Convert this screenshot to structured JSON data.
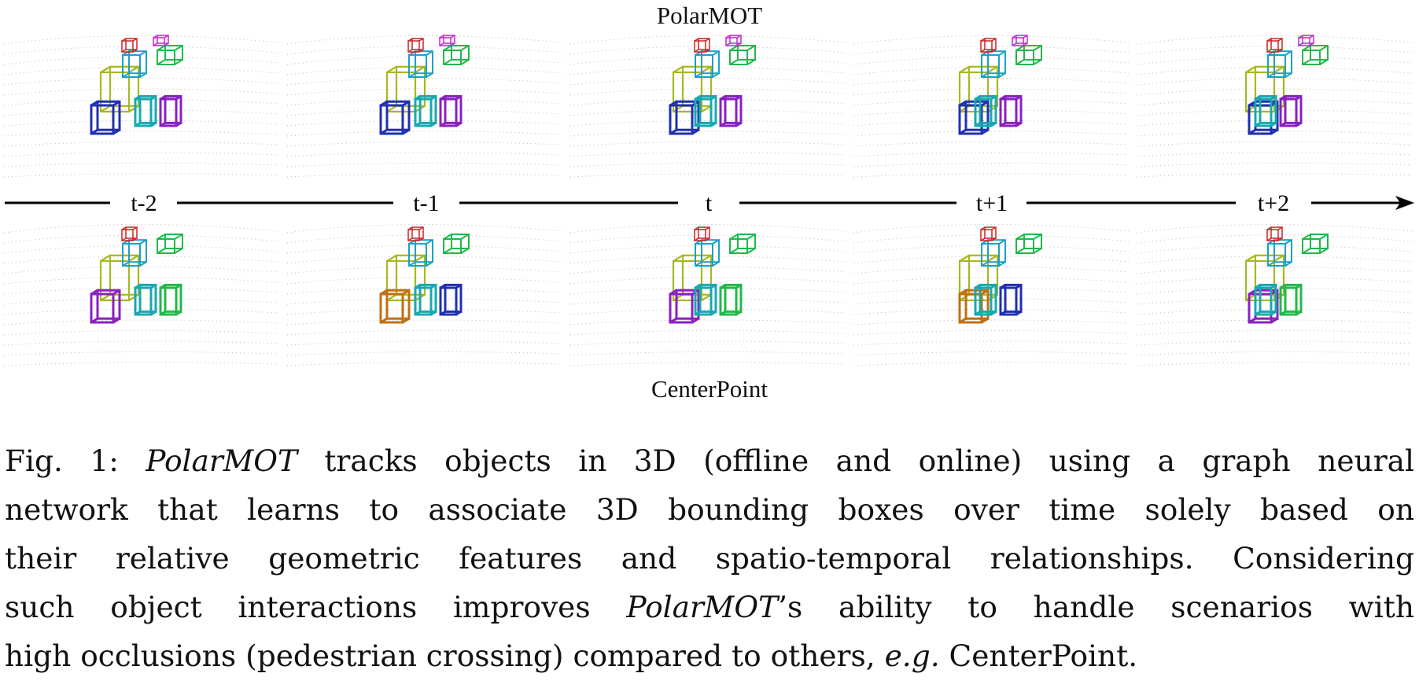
{
  "figure": {
    "top_title": "PolarMOT",
    "bottom_title": "CenterPoint",
    "timeline_labels": [
      "t-2",
      "t-1",
      "t",
      "t+1",
      "t+2"
    ]
  },
  "caption": {
    "line1_prefix": "Fig. 1: ",
    "line1_italic": "PolarMOT",
    "line1_rest": " tracks objects in 3D (offline and online) using a graph neural",
    "line2": "network that learns to associate 3D bounding boxes over time solely based on",
    "line3": "their relative geometric features and spatio-temporal relationships. Considering",
    "line4_prefix": "such object interactions improves ",
    "line4_italic": "PolarMOT",
    "line4_rest": "’s ability to handle scenarios with",
    "line5_prefix": "high occlusions (pedestrian crossing) compared to others, ",
    "line5_italic": "e.g.",
    "line5_rest": " CenterPoint."
  },
  "colors": {
    "yellow_green": "#a8b820",
    "cyan": "#1ca0c8",
    "teal": "#18a8b0",
    "green": "#22b84a",
    "blue": "#2030b0",
    "purple": "#8a20c0",
    "red": "#d02020",
    "magenta": "#d020d0",
    "orange": "#c07010",
    "point": "#b8b8b8"
  }
}
